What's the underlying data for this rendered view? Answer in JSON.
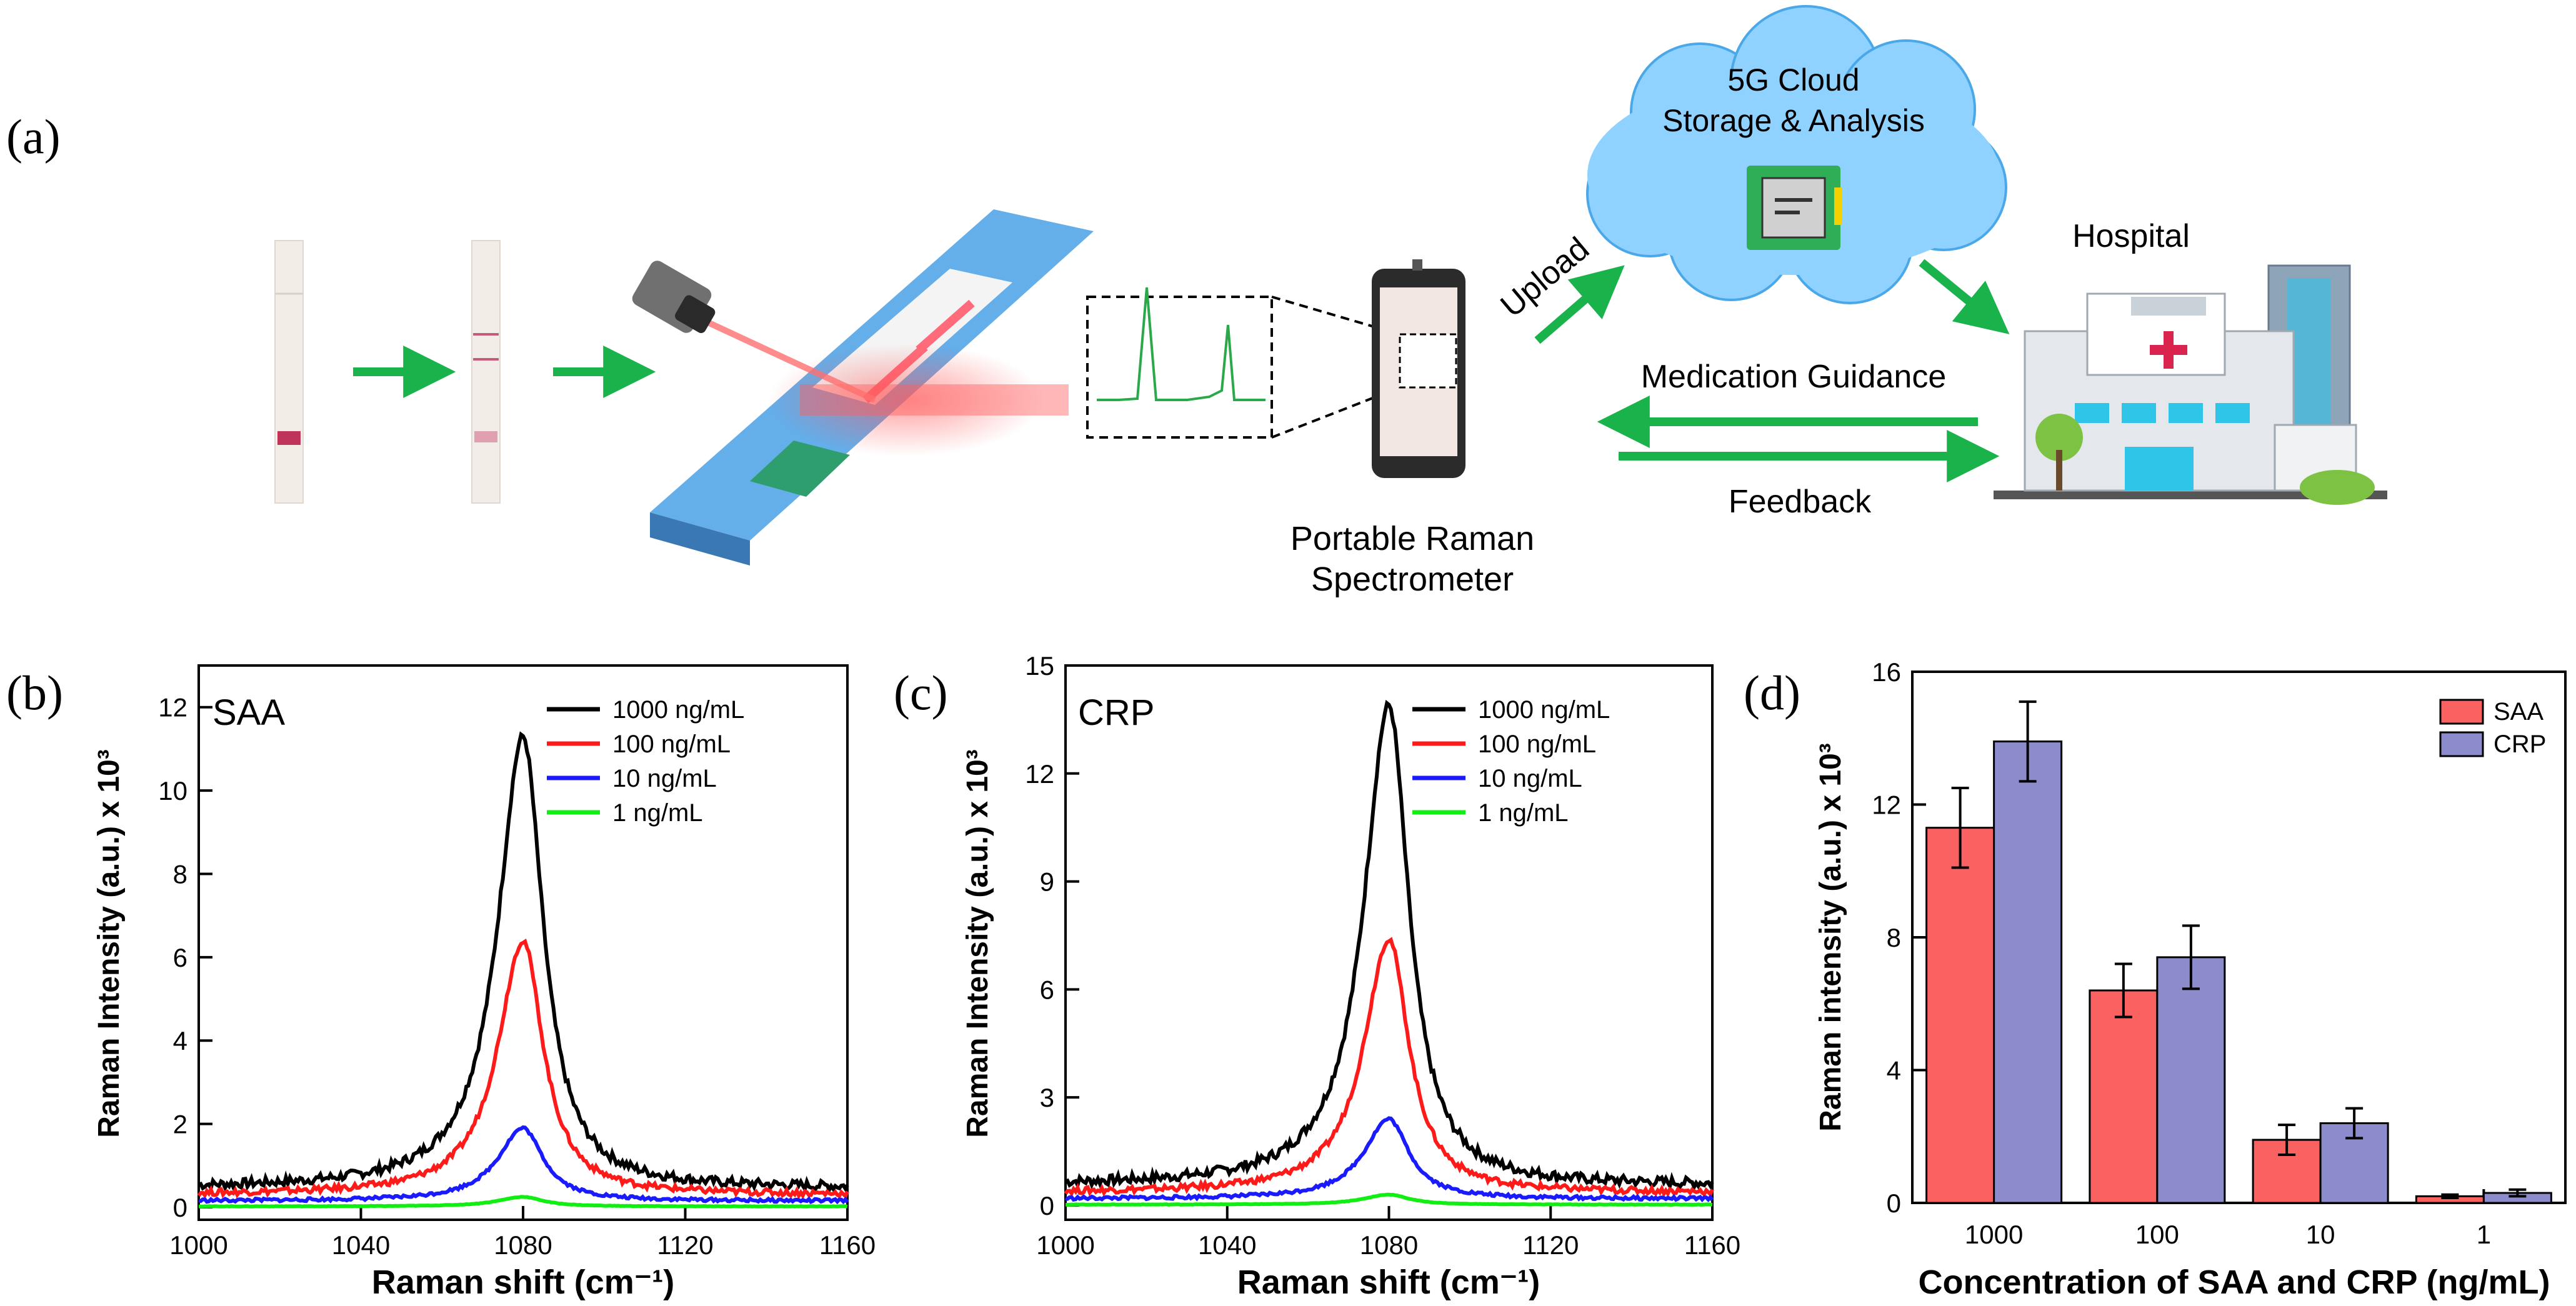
{
  "panel_a": {
    "label": "(a)",
    "cloud_line1": "5G Cloud",
    "cloud_line2": "Storage & Analysis",
    "upload": "Upload",
    "hospital": "Hospital",
    "medication": "Medication Guidance",
    "feedback": "Feedback",
    "spectrometer_line1": "Portable Raman",
    "spectrometer_line2": "Spectrometer"
  },
  "colors": {
    "c1000": "#000000",
    "c100": "#ff1a1a",
    "c10": "#1a1aff",
    "c1": "#11ee11",
    "saa_bar": "#fa6262",
    "crp_bar": "#8c8ccc",
    "arrow": "#19b24b",
    "cloud": "#8fd2ff"
  },
  "chart_data": [
    {
      "type": "line",
      "panel_label": "(b)",
      "title": "SAA",
      "xlabel": "Raman shift (cm⁻¹)",
      "ylabel": "Raman Intensity (a.u.) x 10³",
      "xlim": [
        1000,
        1160
      ],
      "ylim": [
        -0.3,
        13
      ],
      "xticks": [
        1000,
        1040,
        1080,
        1120,
        1160
      ],
      "yticks": [
        0,
        2,
        4,
        6,
        8,
        10,
        12
      ],
      "peak_center": 1080,
      "series": [
        {
          "name": "1000 ng/mL",
          "peak": 11.3,
          "baseline": 0.45
        },
        {
          "name": "100 ng/mL",
          "peak": 6.4,
          "baseline": 0.3
        },
        {
          "name": "10 ng/mL",
          "peak": 1.9,
          "baseline": 0.15
        },
        {
          "name": "1 ng/mL",
          "peak": 0.25,
          "baseline": 0.02
        }
      ]
    },
    {
      "type": "line",
      "panel_label": "(c)",
      "title": "CRP",
      "xlabel": "Raman shift (cm⁻¹)",
      "ylabel": "Raman Intensity (a.u.) x 10³",
      "xlim": [
        1000,
        1160
      ],
      "ylim": [
        -0.4,
        15
      ],
      "xticks": [
        1000,
        1040,
        1080,
        1120,
        1160
      ],
      "yticks": [
        0,
        3,
        6,
        9,
        12,
        15
      ],
      "peak_center": 1080,
      "series": [
        {
          "name": "1000 ng/mL",
          "peak": 13.9,
          "baseline": 0.55
        },
        {
          "name": "100 ng/mL",
          "peak": 7.4,
          "baseline": 0.35
        },
        {
          "name": "10 ng/mL",
          "peak": 2.4,
          "baseline": 0.18
        },
        {
          "name": "1 ng/mL",
          "peak": 0.3,
          "baseline": 0.02
        }
      ]
    },
    {
      "type": "bar",
      "panel_label": "(d)",
      "xlabel": "Concentration of SAA and CRP (ng/mL)",
      "ylabel": "Raman intensity (a.u.) x 10³",
      "categories": [
        "1000",
        "100",
        "10",
        "1"
      ],
      "ylim": [
        0,
        16
      ],
      "yticks": [
        0,
        4,
        8,
        12,
        16
      ],
      "series": [
        {
          "name": "SAA",
          "values": [
            11.3,
            6.4,
            1.9,
            0.2
          ],
          "errors": [
            1.2,
            0.8,
            0.45,
            0.05
          ]
        },
        {
          "name": "CRP",
          "values": [
            13.9,
            7.4,
            2.4,
            0.3
          ],
          "errors": [
            1.2,
            0.95,
            0.45,
            0.1
          ]
        }
      ]
    }
  ]
}
